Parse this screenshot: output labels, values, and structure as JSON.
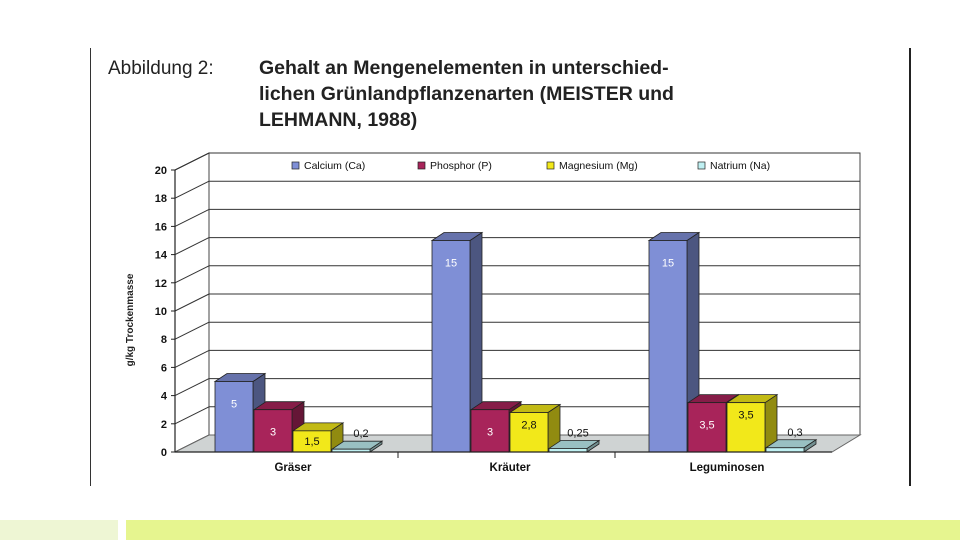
{
  "caption": {
    "label": "Abbildung 2:",
    "title": "Gehalt an Mengenelementen in unterschied-\nlichen Grünlandpflanzenarten (MEISTER und\nLEHMANN, 1988)"
  },
  "chart_data": {
    "type": "bar",
    "categories": [
      "Gräser",
      "Kräuter",
      "Leguminosen"
    ],
    "series": [
      {
        "name": "Calcium (Ca)",
        "values": [
          5,
          15,
          15
        ],
        "labels": [
          "5",
          "15",
          "15"
        ],
        "color": "#7f8fd6"
      },
      {
        "name": "Phosphor (P)",
        "values": [
          3,
          3,
          3.5
        ],
        "labels": [
          "3",
          "3",
          "3,5"
        ],
        "color": "#a8245a"
      },
      {
        "name": "Magnesium (Mg)",
        "values": [
          1.5,
          2.8,
          3.5
        ],
        "labels": [
          "1,5",
          "2,8",
          "3,5"
        ],
        "color": "#f2e81a"
      },
      {
        "name": "Natrium (Na)",
        "values": [
          0.2,
          0.25,
          0.3
        ],
        "labels": [
          "0,2",
          "0,25",
          "0,3"
        ],
        "color": "#bff0f2"
      }
    ],
    "ylabel": "g/kg Trockenmasse",
    "ylim": [
      0,
      20
    ],
    "yticks": [
      0,
      2,
      4,
      6,
      8,
      10,
      12,
      14,
      16,
      18,
      20
    ],
    "grid": true,
    "legend_position": "top"
  }
}
